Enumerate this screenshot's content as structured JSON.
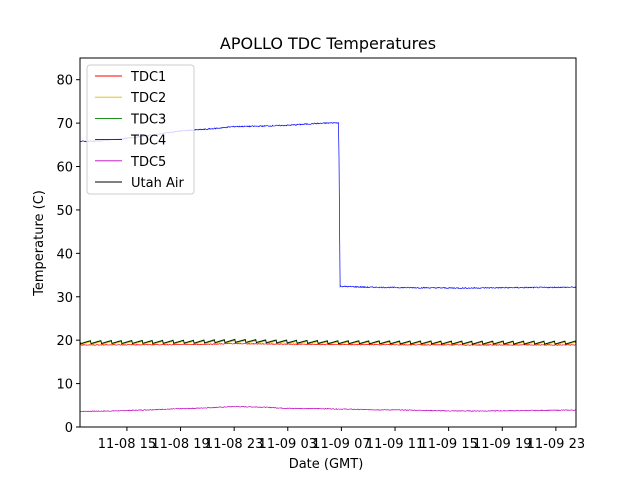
{
  "chart_data": {
    "type": "line",
    "title": "APOLLO TDC Temperatures",
    "xlabel": "Date (GMT)",
    "ylabel": "Temperature (C)",
    "ylim": [
      0,
      85
    ],
    "yticks": [
      0,
      10,
      20,
      30,
      40,
      50,
      60,
      70,
      80
    ],
    "xlim_hours": [
      11.5,
      48.5
    ],
    "xticks": [
      {
        "hour": 15,
        "label": "11-08 15"
      },
      {
        "hour": 19,
        "label": "11-08 19"
      },
      {
        "hour": 23,
        "label": "11-08 23"
      },
      {
        "hour": 27,
        "label": "11-09 03"
      },
      {
        "hour": 31,
        "label": "11-09 07"
      },
      {
        "hour": 35,
        "label": "11-09 11"
      },
      {
        "hour": 39,
        "label": "11-09 15"
      },
      {
        "hour": 43,
        "label": "11-09 19"
      },
      {
        "hour": 47,
        "label": "11-09 23"
      }
    ],
    "legend": "upper-left",
    "grid": false,
    "series": [
      {
        "name": "TDC1",
        "color": "#ff0000",
        "points": [
          [
            11.5,
            18.9
          ],
          [
            20,
            19.0
          ],
          [
            23,
            19.2
          ],
          [
            30,
            19.0
          ],
          [
            40,
            18.9
          ],
          [
            48.5,
            18.9
          ]
        ]
      },
      {
        "name": "TDC2",
        "color": "#e6b800",
        "points": [
          [
            11.5,
            19.3
          ],
          [
            20,
            19.4
          ],
          [
            23,
            19.6
          ],
          [
            30,
            19.3
          ],
          [
            40,
            19.2
          ],
          [
            48.5,
            19.2
          ]
        ]
      },
      {
        "name": "TDC3",
        "color": "#008000",
        "points": [
          [
            11.5,
            19.6
          ],
          [
            20,
            19.7
          ],
          [
            23,
            19.9
          ],
          [
            30,
            19.6
          ],
          [
            40,
            19.5
          ],
          [
            48.5,
            19.5
          ]
        ]
      },
      {
        "name": "TDC4",
        "color": "#0000ff",
        "points": [
          [
            11.5,
            65.8
          ],
          [
            13,
            65.9
          ],
          [
            15,
            66.5
          ],
          [
            17,
            67.3
          ],
          [
            19,
            68.2
          ],
          [
            21,
            68.6
          ],
          [
            23,
            69.2
          ],
          [
            25,
            69.3
          ],
          [
            27,
            69.5
          ],
          [
            29,
            69.9
          ],
          [
            30.8,
            70.1
          ],
          [
            30.9,
            32.4
          ],
          [
            33,
            32.2
          ],
          [
            36,
            32.1
          ],
          [
            40,
            32.0
          ],
          [
            44,
            32.1
          ],
          [
            48.5,
            32.2
          ]
        ]
      },
      {
        "name": "TDC5",
        "color": "#bf00bf",
        "points": [
          [
            11.5,
            3.6
          ],
          [
            14,
            3.7
          ],
          [
            17,
            4.0
          ],
          [
            20,
            4.3
          ],
          [
            23,
            4.7
          ],
          [
            25,
            4.6
          ],
          [
            27,
            4.3
          ],
          [
            30,
            4.2
          ],
          [
            33,
            4.0
          ],
          [
            36,
            3.9
          ],
          [
            39,
            3.7
          ],
          [
            42,
            3.7
          ],
          [
            45,
            3.8
          ],
          [
            48.5,
            3.9
          ]
        ]
      },
      {
        "name": "Utah Air",
        "color": "#000000",
        "points": [
          [
            11.5,
            19.5
          ],
          [
            20,
            19.6
          ],
          [
            23,
            19.8
          ],
          [
            30,
            19.5
          ],
          [
            40,
            19.4
          ],
          [
            48.5,
            19.4
          ]
        ]
      }
    ]
  }
}
